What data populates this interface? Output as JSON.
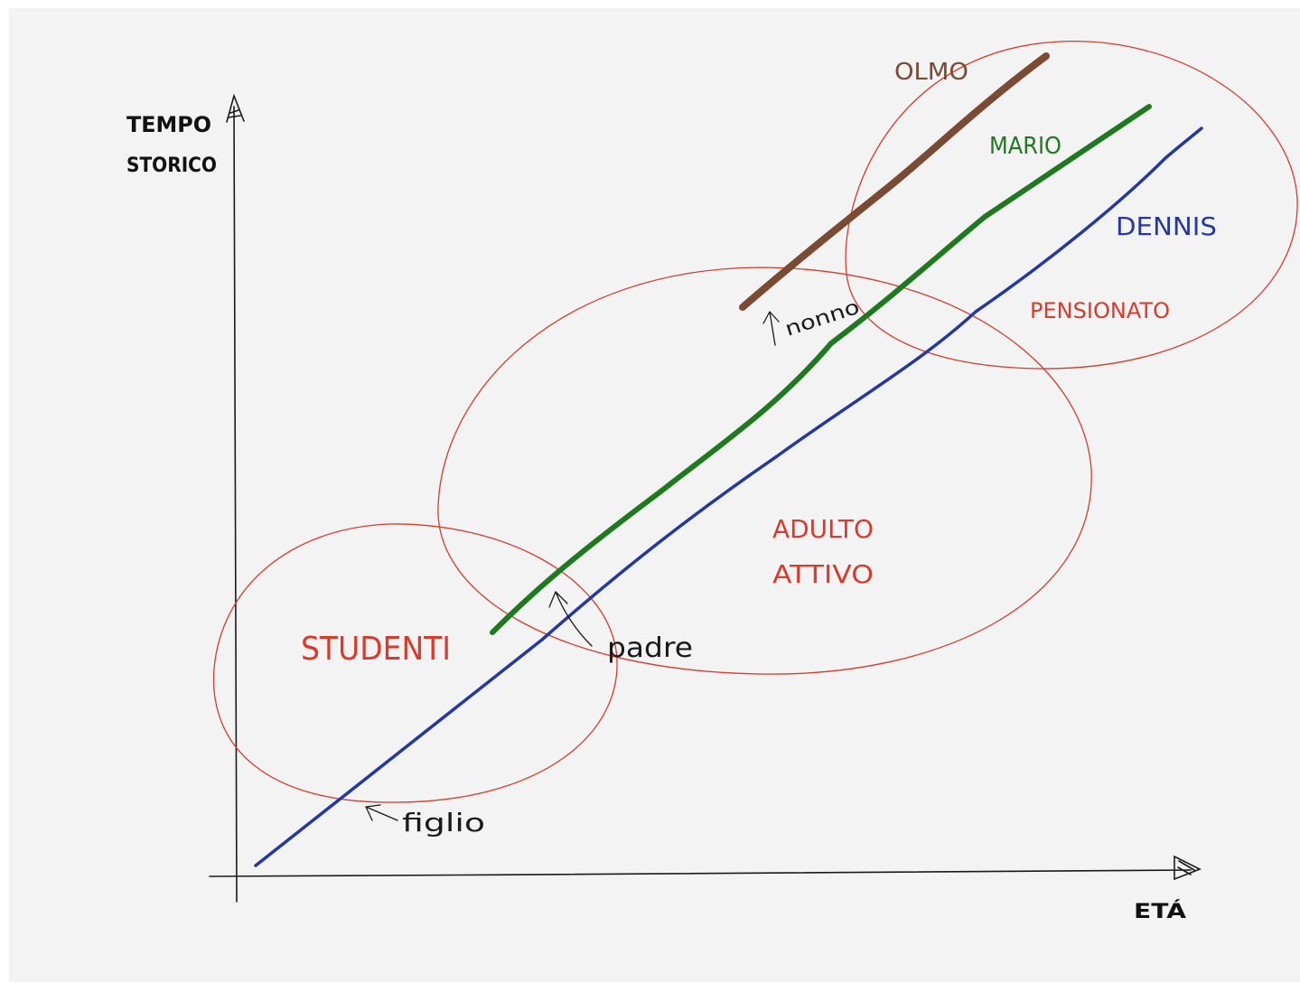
{
  "axes": {
    "y_label_line1": "TEMPO",
    "y_label_line2": "STORICO",
    "x_label": "ETÁ"
  },
  "lines": [
    {
      "name": "OLMO",
      "color": "#7a4a32"
    },
    {
      "name": "MARIO",
      "color": "#1f7a1f"
    },
    {
      "name": "DENNIS",
      "color": "#2438a0"
    }
  ],
  "zones": {
    "students": "STUDENTI",
    "adult_line1": "ADULTO",
    "adult_line2": "ATTIVO",
    "retired": "PENSIONATO"
  },
  "annotations": {
    "son": "figlio",
    "father": "padre",
    "grandfather": "nonno"
  },
  "colors": {
    "zone": "#d93a2b",
    "ink": "#1a1a1a",
    "paper": "#f3f3f3"
  }
}
